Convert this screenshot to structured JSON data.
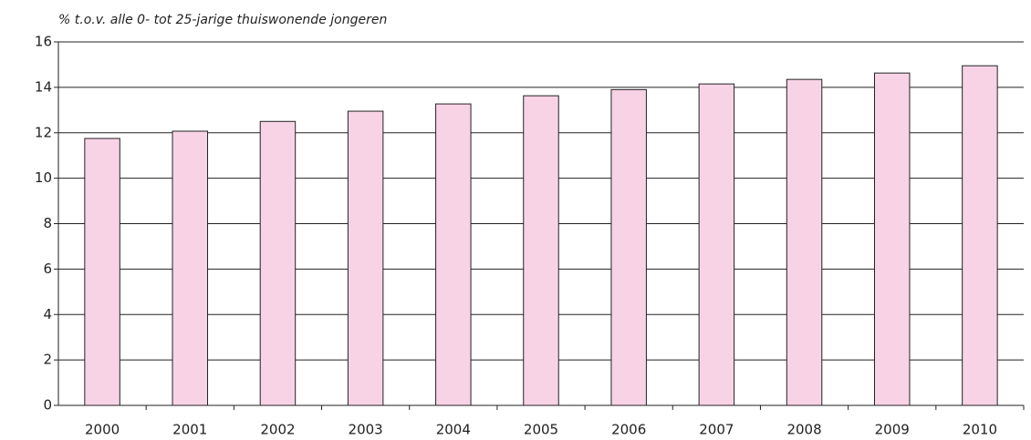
{
  "chart_data": {
    "type": "bar",
    "y_axis_label": "% t.o.v. alle 0- tot 25-jarige thuiswonende jongeren",
    "categories": [
      "2000",
      "2001",
      "2002",
      "2003",
      "2004",
      "2005",
      "2006",
      "2007",
      "2008",
      "2009",
      "2010"
    ],
    "values": [
      11.75,
      12.07,
      12.5,
      12.95,
      13.27,
      13.63,
      13.9,
      14.15,
      14.35,
      14.63,
      14.95
    ],
    "color": "#f8d3e6",
    "ylim": [
      0,
      16
    ],
    "yticks": [
      0,
      2,
      4,
      6,
      8,
      10,
      12,
      14,
      16
    ],
    "grid": true
  }
}
